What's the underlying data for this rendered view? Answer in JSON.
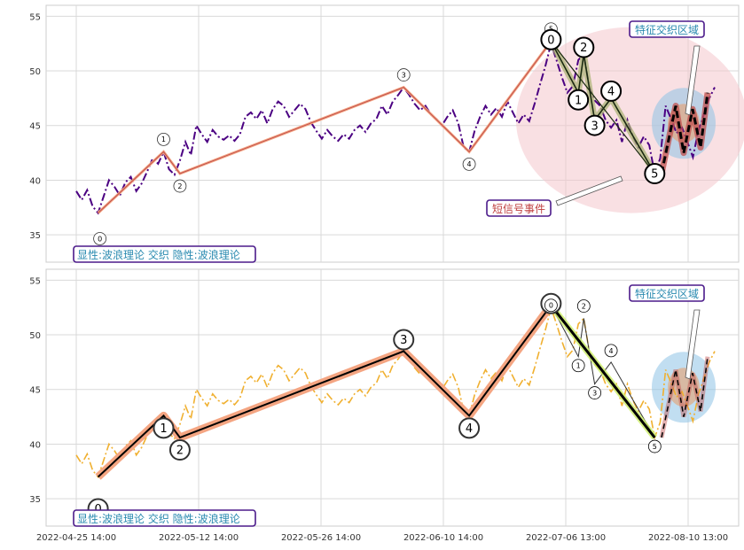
{
  "colors": {
    "grid": "#d9d9d9",
    "frame": "#cccccc",
    "price_top": "#4b0082",
    "price_bottom": "#f0b030",
    "wave_line": "#c0504d",
    "wave_band": "#f4a582",
    "wave_thick": "#000000",
    "ellipse_pink": "#f4c6cc",
    "ellipse_blue": "#8ec3e6",
    "ellipse_orange": "#e8a070",
    "annot_text_blue": "#2a8ab0",
    "annot_text_red": "#c04040",
    "annot_border": "#4b1a8a"
  },
  "chart_data": [
    {
      "type": "line",
      "panel": "top",
      "ylim": [
        32.5,
        56
      ],
      "yticks": [
        35,
        40,
        45,
        50,
        55
      ],
      "legend_box": "显性:波浪理论 交织 隐性:波浪理论",
      "annotations": [
        "特征交织区域",
        "短信号事件"
      ],
      "series": [
        {
          "style": "dash-dot",
          "values": [
            39.0,
            38.2,
            39.1,
            37.6,
            37.0,
            38.5,
            40.0,
            39.4,
            38.6,
            39.8,
            40.3,
            39.0,
            39.7,
            40.8,
            42.0,
            41.5,
            42.6,
            41.0,
            40.5,
            41.8,
            43.5,
            42.3,
            45.0,
            44.2,
            43.5,
            44.6,
            44.0,
            43.7,
            44.1,
            43.6,
            44.2,
            45.8,
            46.2,
            45.6,
            46.4,
            45.2,
            46.5,
            47.2,
            46.8,
            45.8,
            46.4,
            47.0,
            46.5,
            45.3,
            44.5,
            43.8,
            44.6,
            44.0,
            43.6,
            44.2,
            43.8,
            44.6,
            45.0,
            44.4,
            45.2,
            45.6,
            46.8,
            46.0,
            47.2,
            47.8,
            48.5,
            47.8,
            47.0,
            46.4,
            46.8,
            46.0,
            45.6,
            45.0,
            45.8,
            46.4,
            45.2,
            43.0,
            42.6,
            44.5,
            45.8,
            46.8,
            46.0,
            46.6,
            45.8,
            47.2,
            46.2,
            45.2,
            46.0,
            45.4,
            47.0,
            48.8,
            50.5,
            52.5,
            51.0,
            49.4,
            48.0,
            48.6,
            51.0,
            51.5,
            48.5,
            47.3,
            46.8,
            45.5,
            44.8,
            45.5,
            43.5,
            45.5,
            44.0,
            43.0,
            44.0,
            43.2,
            40.6,
            42.0,
            46.8,
            45.6,
            44.3,
            44.8,
            43.5,
            42.1,
            44.5,
            46.0,
            47.5,
            48.5
          ]
        },
        {
          "name": "",
          "points": [
            {
              "x": "0",
              "y": 37.0
            },
            {
              "x": "1",
              "y": 42.6
            },
            {
              "x": "2",
              "y": 40.6
            },
            {
              "x": "3",
              "y": 48.5
            },
            {
              "x": "4",
              "y": 42.6
            },
            {
              "x": "5",
              "y": 52.7
            }
          ]
        }
      ],
      "wave_labels_small": [
        "0",
        "1",
        "2",
        "3",
        "4",
        "5"
      ],
      "wave_labels_big": [
        "0",
        "1",
        "2",
        "3",
        "4",
        "5"
      ]
    },
    {
      "type": "line",
      "panel": "bottom",
      "ylim": [
        32.5,
        56
      ],
      "yticks": [
        35,
        40,
        45,
        50,
        55
      ],
      "legend_box": "显性:波浪理论 交织 隐性:波浪理论",
      "annotations": [
        "特征交织区域"
      ],
      "xtick_labels": [
        "2022-04-25 14:00",
        "2022-05-12 14:00",
        "2022-05-26 14:00",
        "2022-06-10 14:00",
        "2022-07-06 13:00",
        "2022-08-10 13:00"
      ],
      "series": [
        {
          "style": "dash-dot",
          "values": [
            39.0,
            38.2,
            39.1,
            37.6,
            37.0,
            38.5,
            40.0,
            39.4,
            38.6,
            39.8,
            40.3,
            39.0,
            39.7,
            40.8,
            42.0,
            41.5,
            42.6,
            41.0,
            40.5,
            41.8,
            43.5,
            42.3,
            45.0,
            44.2,
            43.5,
            44.6,
            44.0,
            43.7,
            44.1,
            43.6,
            44.2,
            45.8,
            46.2,
            45.6,
            46.4,
            45.2,
            46.5,
            47.2,
            46.8,
            45.8,
            46.4,
            47.0,
            46.5,
            45.3,
            44.5,
            43.8,
            44.6,
            44.0,
            43.6,
            44.2,
            43.8,
            44.6,
            45.0,
            44.4,
            45.2,
            45.6,
            46.8,
            46.0,
            47.2,
            47.8,
            48.5,
            47.8,
            47.0,
            46.4,
            46.8,
            46.0,
            45.6,
            45.0,
            45.8,
            46.4,
            45.2,
            43.0,
            42.6,
            44.5,
            45.8,
            46.8,
            46.0,
            46.6,
            45.8,
            47.2,
            46.2,
            45.2,
            46.0,
            45.4,
            47.0,
            48.8,
            50.5,
            52.5,
            51.0,
            49.4,
            48.0,
            48.6,
            51.0,
            51.5,
            48.5,
            47.3,
            46.8,
            45.5,
            44.8,
            45.5,
            43.5,
            45.5,
            44.0,
            43.0,
            44.0,
            43.2,
            40.6,
            42.0,
            46.8,
            45.6,
            44.3,
            44.8,
            43.5,
            42.1,
            44.5,
            46.0,
            47.5,
            48.5
          ]
        },
        {
          "name": "",
          "points": [
            {
              "x": "0",
              "y": 37.0
            },
            {
              "x": "1",
              "y": 42.6
            },
            {
              "x": "2",
              "y": 40.6
            },
            {
              "x": "3",
              "y": 48.5
            },
            {
              "x": "4",
              "y": 42.6
            },
            {
              "x": "5",
              "y": 52.7
            }
          ]
        }
      ],
      "wave_labels_small": [
        "1",
        "2",
        "3",
        "4",
        "5"
      ],
      "wave_labels_big": [
        "0",
        "1",
        "2",
        "3",
        "4",
        "5"
      ]
    }
  ]
}
